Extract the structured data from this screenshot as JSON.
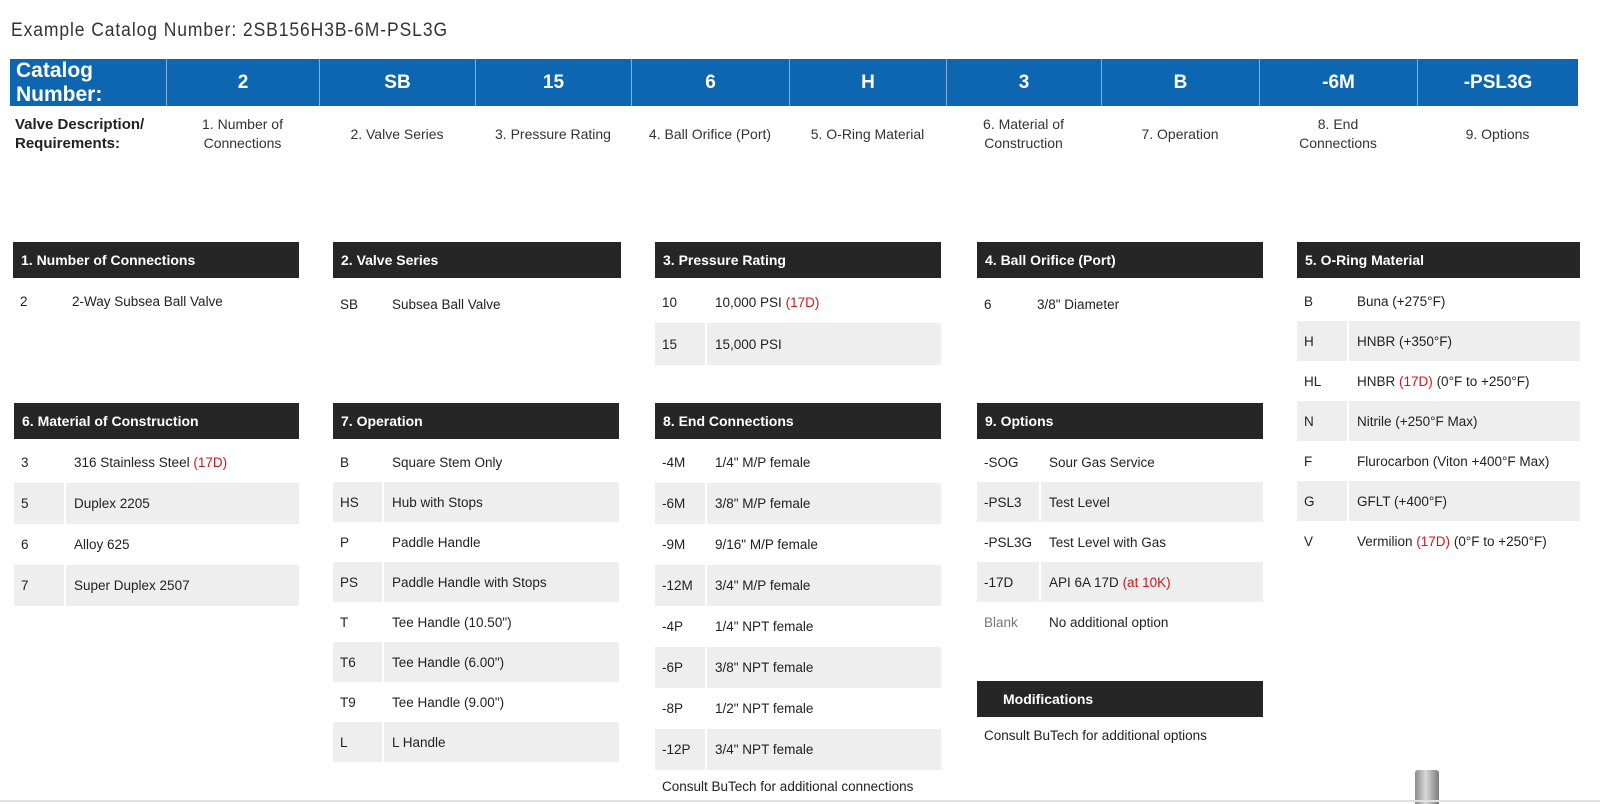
{
  "example": "Example Catalog Number: 2SB156H3B-6M-PSL3G",
  "catalog": {
    "label": "Catalog Number:",
    "codes": [
      "2",
      "SB",
      "15",
      "6",
      "H",
      "3",
      "B",
      "-6M",
      "-PSL3G"
    ]
  },
  "description": {
    "label_line1": "Valve Description/",
    "label_line2": "Requirements:",
    "items": [
      [
        "1.  Number of",
        "Connections"
      ],
      [
        "2.  Valve Series"
      ],
      [
        "3.  Pressure Rating"
      ],
      [
        "4.  Ball Orifice (Port)"
      ],
      [
        "5.  O-Ring Material"
      ],
      [
        "6.  Material of",
        "Construction"
      ],
      [
        "7.  Operation"
      ],
      [
        "8.  End",
        "Connections"
      ],
      [
        "9.  Options"
      ]
    ]
  },
  "panels": {
    "connections": {
      "title": "1.   Number of Connections",
      "rows": [
        {
          "code": "2",
          "desc": "2-Way Subsea Ball Valve"
        }
      ]
    },
    "series": {
      "title": "2.   Valve Series",
      "rows": [
        {
          "code": "SB",
          "desc": "Subsea Ball Valve"
        }
      ]
    },
    "pressure": {
      "title": "3.   Pressure Rating",
      "rows": [
        {
          "code": "10",
          "desc": "10,000 PSI",
          "red": "(17D)"
        },
        {
          "code": "15",
          "desc": "15,000 PSI"
        }
      ]
    },
    "orifice": {
      "title": "4.   Ball Orifice  (Port)",
      "rows": [
        {
          "code": "6",
          "desc": "3/8\" Diameter"
        }
      ]
    },
    "oring": {
      "title": "5.   O-Ring Material",
      "rows": [
        {
          "code": "B",
          "desc": "Buna  (+275°F)"
        },
        {
          "code": "H",
          "desc": "HNBR  (+350°F)"
        },
        {
          "code": "HL",
          "desc": "HNBR",
          "red": "(17D)",
          "after": "(0°F to +250°F)"
        },
        {
          "code": "N",
          "desc": "Nitrile  (+250°F Max)"
        },
        {
          "code": "F",
          "desc": "Flurocarbon  (Viton +400°F Max)"
        },
        {
          "code": "G",
          "desc": "GFLT  (+400°F)"
        },
        {
          "code": "V",
          "desc": "Vermilion",
          "red": "(17D)",
          "after": "(0°F to +250°F)"
        }
      ]
    },
    "material": {
      "title": "6.   Material of Construction",
      "rows": [
        {
          "code": "3",
          "desc": "316 Stainless Steel",
          "red": "(17D)"
        },
        {
          "code": "5",
          "desc": "Duplex 2205"
        },
        {
          "code": "6",
          "desc": "Alloy 625"
        },
        {
          "code": "7",
          "desc": "Super Duplex 2507"
        }
      ]
    },
    "operation": {
      "title": "7.   Operation",
      "rows": [
        {
          "code": "B",
          "desc": "Square Stem Only"
        },
        {
          "code": "HS",
          "desc": "Hub with Stops"
        },
        {
          "code": "P",
          "desc": "Paddle Handle"
        },
        {
          "code": "PS",
          "desc": "Paddle Handle with Stops"
        },
        {
          "code": "T",
          "desc": "Tee Handle (10.50\")"
        },
        {
          "code": "T6",
          "desc": "Tee Handle (6.00\")"
        },
        {
          "code": "T9",
          "desc": "Tee Handle (9.00\")"
        },
        {
          "code": "L",
          "desc": "L Handle"
        }
      ]
    },
    "ends": {
      "title": "8.   End Connections",
      "rows": [
        {
          "code": "-4M",
          "desc": "1/4\" M/P female"
        },
        {
          "code": "-6M",
          "desc": "3/8\" M/P female"
        },
        {
          "code": "-9M",
          "desc": "9/16\" M/P female"
        },
        {
          "code": "-12M",
          "desc": "3/4\" M/P female"
        },
        {
          "code": "-4P",
          "desc": "1/4\" NPT female"
        },
        {
          "code": "-6P",
          "desc": "3/8\" NPT female"
        },
        {
          "code": "-8P",
          "desc": "1/2\" NPT female"
        },
        {
          "code": "-12P",
          "desc": "3/4\" NPT female"
        }
      ],
      "note": "Consult BuTech for additional connections"
    },
    "options": {
      "title": "9.   Options",
      "rows": [
        {
          "code": "-SOG",
          "desc": "Sour Gas Service"
        },
        {
          "code": "-PSL3",
          "desc": "Test Level"
        },
        {
          "code": "-PSL3G",
          "desc": "Test Level with Gas"
        },
        {
          "code": "-17D",
          "desc": "API 6A 17D",
          "red": "(at 10K)"
        },
        {
          "code": "Blank",
          "desc": "No additional option",
          "grey": true
        }
      ]
    },
    "modifications": {
      "title": "Modifications",
      "note": "Consult BuTech for additional options"
    }
  }
}
